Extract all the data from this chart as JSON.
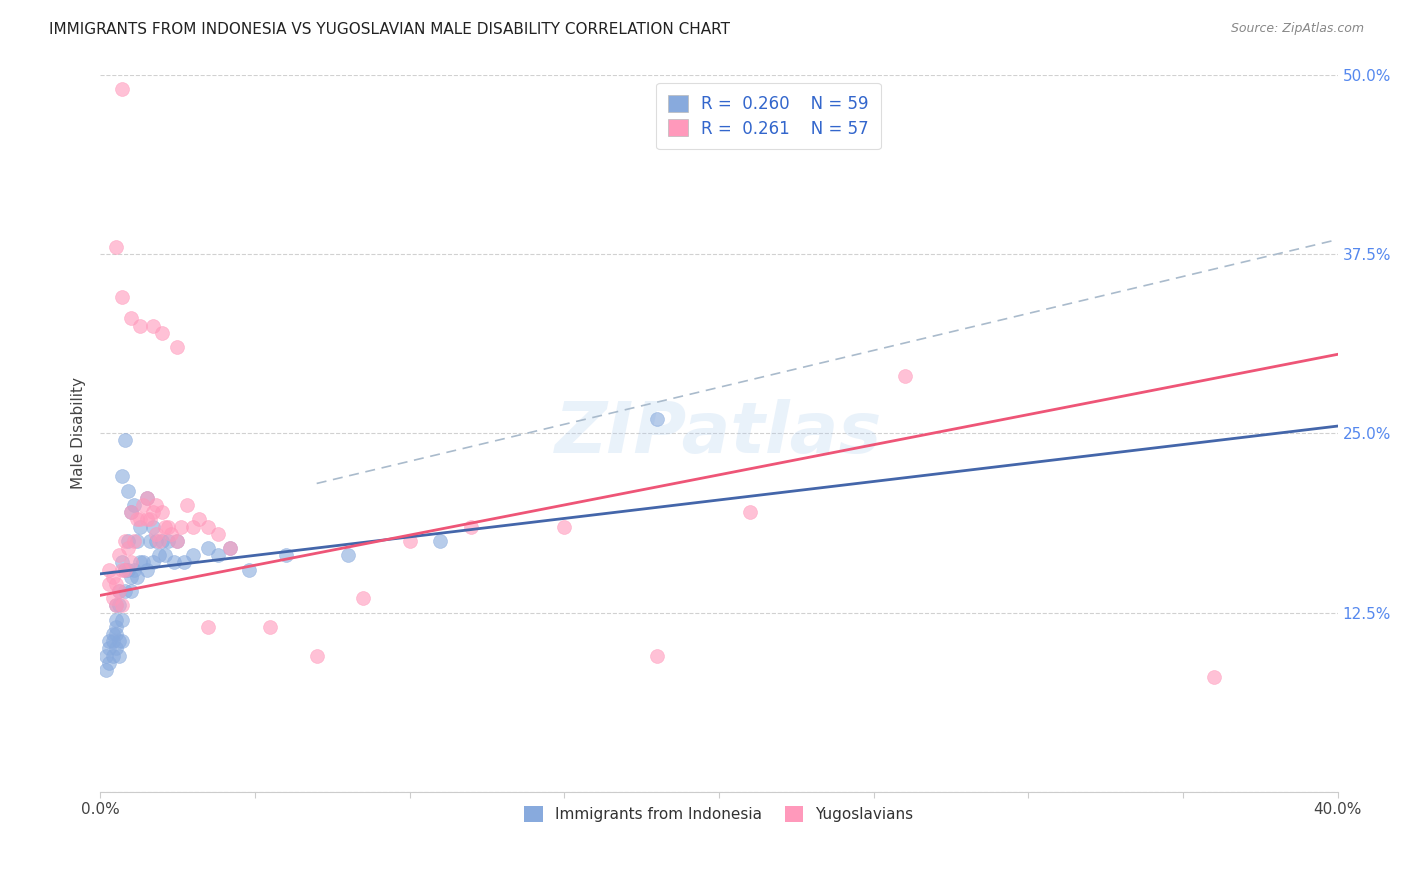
{
  "title": "IMMIGRANTS FROM INDONESIA VS YUGOSLAVIAN MALE DISABILITY CORRELATION CHART",
  "source": "Source: ZipAtlas.com",
  "ylabel": "Male Disability",
  "legend_labels": [
    "Immigrants from Indonesia",
    "Yugoslavians"
  ],
  "legend_r": [
    "0.260",
    "0.261"
  ],
  "legend_n": [
    "59",
    "57"
  ],
  "blue_color": "#88AADD",
  "pink_color": "#FF99BB",
  "blue_line_color": "#4466AA",
  "pink_line_color": "#EE5577",
  "dashed_line_color": "#AABBCC",
  "xlim": [
    0.0,
    0.4
  ],
  "ylim": [
    0.0,
    0.5
  ],
  "watermark": "ZIPatlas",
  "blue_line_x0": 0.0,
  "blue_line_y0": 0.152,
  "blue_line_x1": 0.4,
  "blue_line_y1": 0.255,
  "pink_line_x0": 0.0,
  "pink_line_y0": 0.137,
  "pink_line_x1": 0.4,
  "pink_line_y1": 0.305,
  "dash_line_x0": 0.07,
  "dash_line_y0": 0.215,
  "dash_line_x1": 0.4,
  "dash_line_y1": 0.385,
  "blue_scatter_x": [
    0.002,
    0.002,
    0.003,
    0.003,
    0.003,
    0.004,
    0.004,
    0.004,
    0.005,
    0.005,
    0.005,
    0.005,
    0.005,
    0.006,
    0.006,
    0.006,
    0.006,
    0.007,
    0.007,
    0.007,
    0.007,
    0.008,
    0.008,
    0.008,
    0.009,
    0.009,
    0.009,
    0.01,
    0.01,
    0.01,
    0.011,
    0.011,
    0.012,
    0.012,
    0.013,
    0.013,
    0.014,
    0.015,
    0.015,
    0.016,
    0.017,
    0.017,
    0.018,
    0.019,
    0.02,
    0.021,
    0.022,
    0.024,
    0.025,
    0.027,
    0.03,
    0.035,
    0.038,
    0.042,
    0.048,
    0.06,
    0.08,
    0.11,
    0.18
  ],
  "blue_scatter_y": [
    0.095,
    0.085,
    0.09,
    0.1,
    0.105,
    0.095,
    0.105,
    0.11,
    0.1,
    0.11,
    0.115,
    0.12,
    0.13,
    0.095,
    0.105,
    0.13,
    0.14,
    0.105,
    0.12,
    0.16,
    0.22,
    0.14,
    0.155,
    0.245,
    0.155,
    0.175,
    0.21,
    0.14,
    0.15,
    0.195,
    0.155,
    0.2,
    0.15,
    0.175,
    0.16,
    0.185,
    0.16,
    0.155,
    0.205,
    0.175,
    0.16,
    0.185,
    0.175,
    0.165,
    0.175,
    0.165,
    0.175,
    0.16,
    0.175,
    0.16,
    0.165,
    0.17,
    0.165,
    0.17,
    0.155,
    0.165,
    0.165,
    0.175,
    0.26
  ],
  "pink_scatter_x": [
    0.003,
    0.003,
    0.004,
    0.004,
    0.005,
    0.005,
    0.006,
    0.006,
    0.007,
    0.007,
    0.007,
    0.008,
    0.008,
    0.009,
    0.01,
    0.01,
    0.011,
    0.012,
    0.013,
    0.014,
    0.015,
    0.015,
    0.016,
    0.017,
    0.018,
    0.018,
    0.019,
    0.02,
    0.021,
    0.022,
    0.023,
    0.025,
    0.026,
    0.028,
    0.03,
    0.032,
    0.035,
    0.038,
    0.042,
    0.055,
    0.07,
    0.085,
    0.1,
    0.12,
    0.15,
    0.18,
    0.21,
    0.26,
    0.36,
    0.005,
    0.007,
    0.01,
    0.013,
    0.017,
    0.02,
    0.025,
    0.035
  ],
  "pink_scatter_y": [
    0.145,
    0.155,
    0.135,
    0.15,
    0.13,
    0.145,
    0.14,
    0.165,
    0.13,
    0.155,
    0.49,
    0.155,
    0.175,
    0.17,
    0.16,
    0.195,
    0.175,
    0.19,
    0.19,
    0.2,
    0.19,
    0.205,
    0.19,
    0.195,
    0.18,
    0.2,
    0.175,
    0.195,
    0.185,
    0.185,
    0.18,
    0.175,
    0.185,
    0.2,
    0.185,
    0.19,
    0.185,
    0.18,
    0.17,
    0.115,
    0.095,
    0.135,
    0.175,
    0.185,
    0.185,
    0.095,
    0.195,
    0.29,
    0.08,
    0.38,
    0.345,
    0.33,
    0.325,
    0.325,
    0.32,
    0.31,
    0.115
  ]
}
